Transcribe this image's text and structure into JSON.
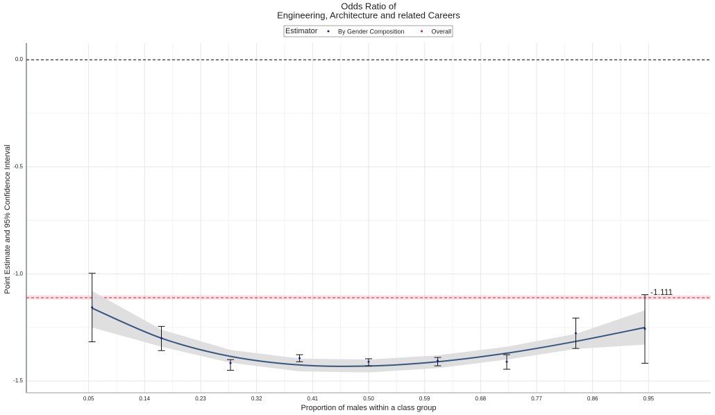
{
  "chart_data": {
    "type": "errorbar",
    "title": [
      "Odds Ratio of",
      "Engineering, Architecture and related Careers"
    ],
    "x_label": "Proportion of males within a class group",
    "y_label": "Point Estimate and 95% Confidence Interval",
    "legend_title": "Estimator",
    "legend_position": "top",
    "grid": true,
    "hline": 0,
    "xlim": [
      -0.05,
      1.05
    ],
    "ylim": [
      -1.555,
      0.078
    ],
    "xticks": [
      0.05,
      0.14,
      0.23,
      0.32,
      0.41,
      {
        "value": 0.5,
        "label": "0.50"
      },
      0.59,
      0.68,
      0.77,
      0.86,
      0.95
    ],
    "yticks": [
      {
        "value": 0,
        "label": "0.0"
      },
      -0.5,
      {
        "value": -1,
        "label": "-1.0"
      },
      -1.5
    ],
    "series": [
      {
        "name": "By Gender Composition",
        "color": "#1a1aa6",
        "x": [
          0.0556,
          0.167,
          0.278,
          0.389,
          0.5,
          0.611,
          0.722,
          0.833,
          0.944
        ],
        "values": [
          -1.156,
          -1.3,
          -1.416,
          -1.393,
          -1.41,
          -1.405,
          -1.41,
          -1.277,
          -1.256
        ],
        "lower": [
          -1.317,
          -1.358,
          -1.45,
          -1.41,
          -1.429,
          -1.429,
          -1.445,
          -1.348,
          -1.417
        ],
        "upper": [
          -0.997,
          -1.245,
          -1.4,
          -1.377,
          -1.396,
          -1.39,
          -1.377,
          -1.206,
          -1.097
        ]
      },
      {
        "name": "Overall",
        "color": "#e8112d",
        "value": -1.111,
        "value_label": "-1.111",
        "lower": -1.12,
        "upper": -1.1
      }
    ],
    "smooth": {
      "color": "#34567f",
      "band_color": "#dcdcdc",
      "x": [
        0.0556,
        0.167,
        0.278,
        0.389,
        0.5,
        0.611,
        0.722,
        0.833,
        0.944
      ],
      "values": [
        -1.16,
        -1.3,
        -1.385,
        -1.425,
        -1.43,
        -1.41,
        -1.37,
        -1.315,
        -1.25
      ],
      "lower": [
        -1.25,
        -1.34,
        -1.415,
        -1.455,
        -1.46,
        -1.44,
        -1.4,
        -1.35,
        -1.33
      ],
      "upper": [
        -1.08,
        -1.26,
        -1.355,
        -1.395,
        -1.4,
        -1.38,
        -1.34,
        -1.28,
        -1.17
      ]
    }
  }
}
